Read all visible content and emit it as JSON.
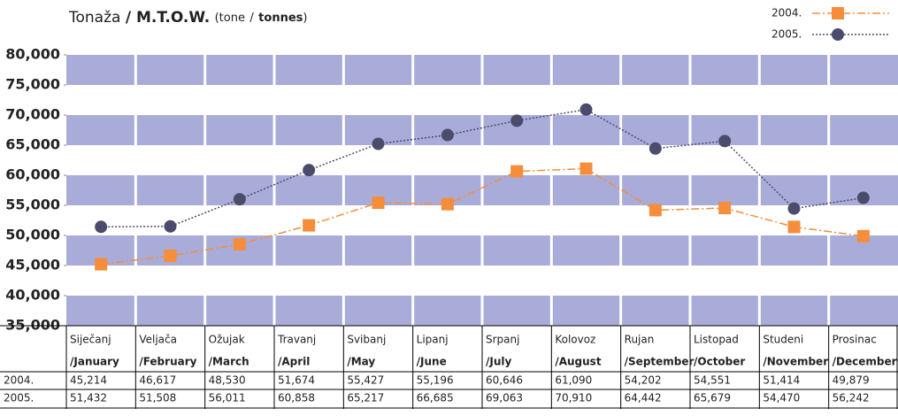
{
  "chart_data": {
    "type": "line",
    "title_parts": [
      "Tonaža",
      "/ M.T.O.W.",
      "(",
      "tone",
      "/",
      "tonnes",
      ")"
    ],
    "categories": [
      "Siječanj",
      "Veljača",
      "Ožujak",
      "Travanj",
      "Svibanj",
      "Lipanj",
      "Srpanj",
      "Kolovoz",
      "Rujan",
      "Listopad",
      "Studeni",
      "Prosinac"
    ],
    "categories_en": [
      "/January",
      "/February",
      "/March",
      "/April",
      "/May",
      "/June",
      "/July",
      "/August",
      "/September",
      "/October",
      "/November",
      "/December"
    ],
    "series": [
      {
        "name": "2004.",
        "color": "#f58d3a",
        "marker": "square",
        "values": [
          45214,
          46617,
          48530,
          51674,
          55427,
          55196,
          60646,
          61090,
          54202,
          54551,
          51414,
          49879
        ],
        "value_labels": [
          "45,214",
          "46,617",
          "48,530",
          "51,674",
          "55,427",
          "55,196",
          "60,646",
          "61,090",
          "54,202",
          "54,551",
          "51,414",
          "49,879"
        ]
      },
      {
        "name": "2005.",
        "color": "#4b4b6b",
        "marker": "circle",
        "values": [
          51432,
          51508,
          56011,
          60858,
          65217,
          66685,
          69063,
          70910,
          64442,
          65679,
          54470,
          56242
        ],
        "value_labels": [
          "51,432",
          "51,508",
          "56,011",
          "60,858",
          "65,217",
          "66,685",
          "69,063",
          "70,910",
          "64,442",
          "65,679",
          "54,470",
          "56,242"
        ]
      }
    ],
    "ylim": [
      35000,
      80000
    ],
    "yticks": [
      {
        "value": 35000,
        "label": "35,000"
      },
      {
        "value": 40000,
        "label": "40,000"
      },
      {
        "value": 45000,
        "label": "45,000"
      },
      {
        "value": 50000,
        "label": "50,000"
      },
      {
        "value": 55000,
        "label": "55,000"
      },
      {
        "value": 60000,
        "label": "60,000"
      },
      {
        "value": 65000,
        "label": "65,000"
      },
      {
        "value": 70000,
        "label": "70,000"
      },
      {
        "value": 75000,
        "label": "75,000"
      },
      {
        "value": 80000,
        "label": "80,000"
      }
    ],
    "band_color": "#a9acd9",
    "legend": "top-right"
  }
}
